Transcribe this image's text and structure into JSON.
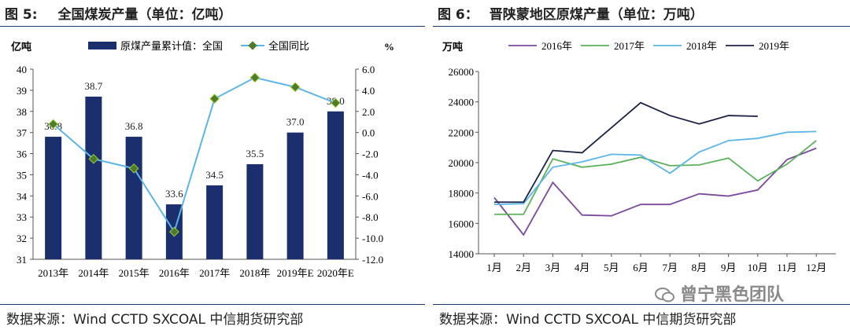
{
  "left": {
    "figure_no": "图 5:",
    "title": "全国煤炭产量（单位：亿吨）",
    "source": "数据来源：Wind CCTD SXCOAL  中信期货研究部"
  },
  "right": {
    "figure_no": "图 6：",
    "title": "晋陕蒙地区原煤产量（单位：万吨）",
    "source": "数据来源：Wind CCTD SXCOAL  中信期货研究部"
  },
  "watermark": "曾宁黑色团队",
  "colors": {
    "bar": "#1b2f6e",
    "yoy_line": "#5bb6e6",
    "yoy_marker": "#4e7a2a",
    "rule": "#1a3a6b",
    "s2016": "#7b4a9e",
    "s2017": "#5cb15c",
    "s2018": "#5bb6e6",
    "s2019": "#1b2245"
  },
  "chart_data": [
    {
      "type": "bar",
      "left_unit": "亿吨",
      "right_unit": "%",
      "categories": [
        "2013年",
        "2014年",
        "2015年",
        "2016年",
        "2017年",
        "2018年",
        "2019年E",
        "2020年E"
      ],
      "ylim": [
        31,
        40
      ],
      "yticks": [
        31,
        32,
        33,
        34,
        35,
        36,
        37,
        38,
        39,
        40
      ],
      "y2lim": [
        -12,
        6
      ],
      "y2ticks": [
        "6.0",
        "4.0",
        "2.0",
        "0.0",
        "-2.0",
        "-4.0",
        "-6.0",
        "-8.0",
        "-10.0",
        "-12.0"
      ],
      "legend_position": "top",
      "series": [
        {
          "name": "原煤产量累计值：全国",
          "kind": "bar",
          "axis": "left",
          "values": [
            36.8,
            38.7,
            36.8,
            33.6,
            34.5,
            35.5,
            37.0,
            38.0
          ],
          "labels": [
            "36.8",
            "38.7",
            "36.8",
            "33.6",
            "34.5",
            "35.5",
            "37.0",
            "38.0"
          ]
        },
        {
          "name": "全国同比",
          "kind": "line",
          "axis": "right",
          "values": [
            0.8,
            -2.5,
            -3.4,
            -9.4,
            3.2,
            5.2,
            4.3,
            2.8
          ]
        }
      ]
    },
    {
      "type": "line",
      "ylabel": "万吨",
      "categories": [
        "1月",
        "2月",
        "3月",
        "4月",
        "5月",
        "6月",
        "7月",
        "8月",
        "9月",
        "10月",
        "11月",
        "12月"
      ],
      "ylim": [
        14000,
        26000
      ],
      "yticks": [
        "14000",
        "16000",
        "18000",
        "20000",
        "22000",
        "24000",
        "26000"
      ],
      "legend_position": "top",
      "series": [
        {
          "name": "2016年",
          "values": [
            17700,
            15250,
            18700,
            16550,
            16500,
            17250,
            17250,
            17950,
            17800,
            18200,
            20200,
            20950
          ]
        },
        {
          "name": "2017年",
          "values": [
            16600,
            16600,
            20250,
            19700,
            19900,
            20350,
            19800,
            19850,
            20300,
            18800,
            19900,
            21450
          ]
        },
        {
          "name": "2018年",
          "values": [
            17250,
            17300,
            19700,
            20050,
            20550,
            20500,
            19300,
            20700,
            21450,
            21600,
            22000,
            22050
          ]
        },
        {
          "name": "2019年",
          "values": [
            17400,
            17400,
            20800,
            20650,
            22300,
            23950,
            23100,
            22550,
            23100,
            23050,
            null,
            null
          ]
        }
      ]
    }
  ]
}
